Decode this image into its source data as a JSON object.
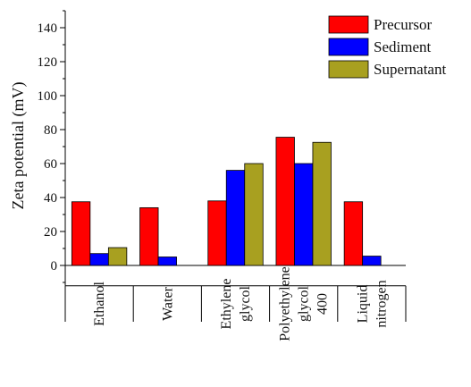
{
  "chart_data": {
    "type": "bar",
    "ylabel": "Zeta potential (mV)",
    "ylim": [
      -12,
      150
    ],
    "yticks": [
      0,
      20,
      40,
      60,
      80,
      100,
      120,
      140
    ],
    "categories": [
      {
        "name": "Ethanol",
        "lines": [
          "Ethanol"
        ]
      },
      {
        "name": "Water",
        "lines": [
          "Water"
        ]
      },
      {
        "name": "Ethylene glycol",
        "lines": [
          "Ethylene",
          "glycol"
        ]
      },
      {
        "name": "Polyethylene glycol 400",
        "lines": [
          "Polyethylene",
          "glycol",
          "400"
        ]
      },
      {
        "name": "Liquid nitrogen",
        "lines": [
          "Liquid",
          "nitrogen"
        ]
      }
    ],
    "series": [
      {
        "name": "Precursor",
        "color": "#ff0000",
        "values": [
          37.5,
          34,
          38,
          75.5,
          37.5
        ]
      },
      {
        "name": "Sediment",
        "color": "#0000ff",
        "values": [
          7,
          5,
          56,
          60,
          5.5
        ]
      },
      {
        "name": "Supernatant",
        "color": "#a8a020",
        "values": [
          10.5,
          null,
          60,
          72.5,
          null
        ]
      }
    ],
    "legend": "top-right"
  }
}
